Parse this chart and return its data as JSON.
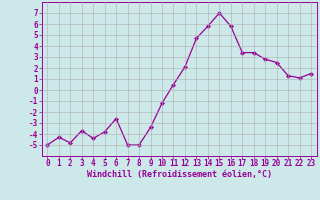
{
  "x": [
    0,
    1,
    2,
    3,
    4,
    5,
    6,
    7,
    8,
    9,
    10,
    11,
    12,
    13,
    14,
    15,
    16,
    17,
    18,
    19,
    20,
    21,
    22,
    23
  ],
  "y": [
    -5,
    -4.3,
    -4.8,
    -3.7,
    -4.4,
    -3.8,
    -2.6,
    -5.0,
    -5.0,
    -3.4,
    -1.2,
    0.5,
    2.1,
    4.7,
    5.8,
    7.0,
    5.8,
    3.4,
    3.4,
    2.8,
    2.5,
    1.3,
    1.1,
    1.5
  ],
  "line_color": "#990099",
  "marker": "D",
  "marker_size": 2.2,
  "bg_color": "#cce8e8",
  "grid_color": "#b0b0b0",
  "xlabel": "Windchill (Refroidissement éolien,°C)",
  "ylabel": "",
  "xlim": [
    -0.5,
    23.5
  ],
  "ylim": [
    -6,
    8
  ],
  "yticks": [
    -5,
    -4,
    -3,
    -2,
    -1,
    0,
    1,
    2,
    3,
    4,
    5,
    6,
    7
  ],
  "xticks": [
    0,
    1,
    2,
    3,
    4,
    5,
    6,
    7,
    8,
    9,
    10,
    11,
    12,
    13,
    14,
    15,
    16,
    17,
    18,
    19,
    20,
    21,
    22,
    23
  ],
  "tick_color": "#990099",
  "label_color": "#990099",
  "font_family": "monospace",
  "tick_fontsize": 5.5,
  "xlabel_fontsize": 6.0
}
